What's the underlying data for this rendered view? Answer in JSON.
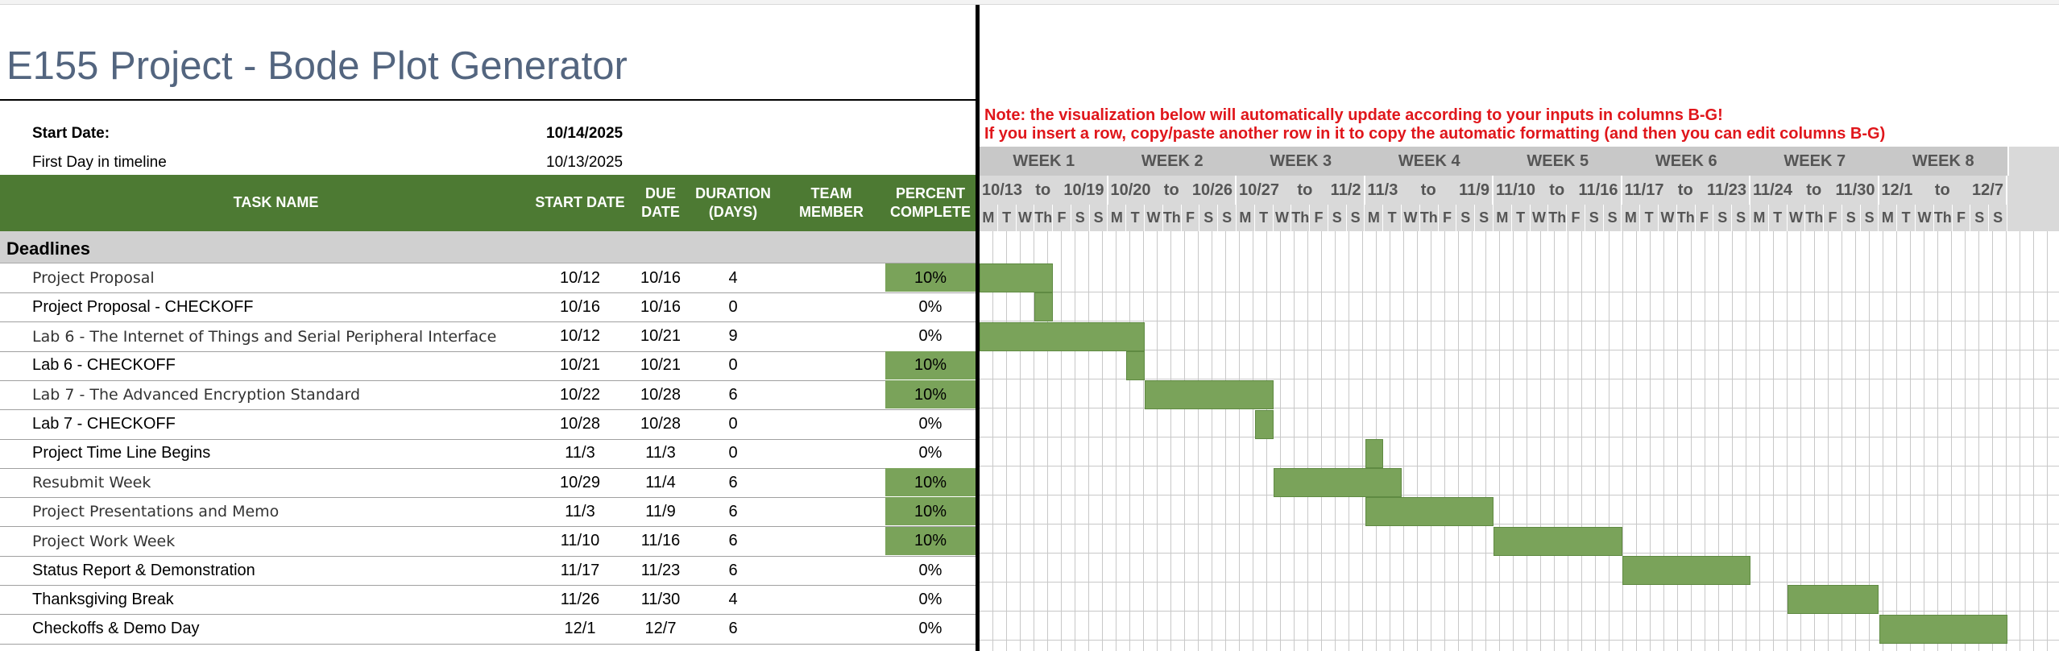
{
  "title": "E155 Project - Bode Plot Generator",
  "meta": {
    "start_label": "Start Date:",
    "start_value": "10/14/2025",
    "first_day_label": "First Day in timeline",
    "first_day_value": "10/13/2025"
  },
  "columns": {
    "task": "TASK NAME",
    "start": "START DATE",
    "due": "DUE\nDATE",
    "duration": "DURATION\n(DAYS)",
    "member": "TEAM\nMEMBER",
    "percent": "PERCENT\nCOMPLETE"
  },
  "section": "Deadlines",
  "notes": {
    "line1": "Note: the visualization below will automatically update according to your inputs in columns B-G!",
    "line2": "If you insert a row, copy/paste another row in it to copy the automatic formatting (and then you can edit columns B-G)"
  },
  "weeks": [
    {
      "label": "WEEK 1",
      "from": "10/13",
      "to": "10/19"
    },
    {
      "label": "WEEK 2",
      "from": "10/20",
      "to": "10/26"
    },
    {
      "label": "WEEK 3",
      "from": "10/27",
      "to": "11/2"
    },
    {
      "label": "WEEK 4",
      "from": "11/3",
      "to": "11/9"
    },
    {
      "label": "WEEK 5",
      "from": "11/10",
      "to": "11/16"
    },
    {
      "label": "WEEK 6",
      "from": "11/17",
      "to": "11/23"
    },
    {
      "label": "WEEK 7",
      "from": "11/24",
      "to": "11/30"
    },
    {
      "label": "WEEK 8",
      "from": "12/1",
      "to": "12/7"
    }
  ],
  "range_word": "to",
  "day_labels": [
    "M",
    "T",
    "W",
    "Th",
    "F",
    "S",
    "S"
  ],
  "colors": {
    "header_green": "#4d7a33",
    "bar_green": "#7aa35a",
    "percent_fill": "#7aa35a",
    "note_red": "#e0161b",
    "title_blue": "#53657f"
  },
  "tasks": [
    {
      "name": "Project Proposal",
      "start": "10/12",
      "due": "10/16",
      "duration": "4",
      "member": "",
      "percent": "10%",
      "filled": true,
      "lite": true
    },
    {
      "name": "Project Proposal - CHECKOFF",
      "start": "10/16",
      "due": "10/16",
      "duration": "0",
      "member": "",
      "percent": "0%",
      "filled": false,
      "lite": false
    },
    {
      "name": "Lab 6 - The Internet of Things and Serial Peripheral Interface",
      "start": "10/12",
      "due": "10/21",
      "duration": "9",
      "member": "",
      "percent": "0%",
      "filled": false,
      "lite": true
    },
    {
      "name": "Lab 6 - CHECKOFF",
      "start": "10/21",
      "due": "10/21",
      "duration": "0",
      "member": "",
      "percent": "10%",
      "filled": true,
      "lite": false
    },
    {
      "name": "Lab 7 - The Advanced Encryption Standard",
      "start": "10/22",
      "due": "10/28",
      "duration": "6",
      "member": "",
      "percent": "10%",
      "filled": true,
      "lite": true
    },
    {
      "name": "Lab 7 - CHECKOFF",
      "start": "10/28",
      "due": "10/28",
      "duration": "0",
      "member": "",
      "percent": "0%",
      "filled": false,
      "lite": false
    },
    {
      "name": "Project Time Line Begins",
      "start": "11/3",
      "due": "11/3",
      "duration": "0",
      "member": "",
      "percent": "0%",
      "filled": false,
      "lite": false
    },
    {
      "name": "Resubmit Week",
      "start": "10/29",
      "due": "11/4",
      "duration": "6",
      "member": "",
      "percent": "10%",
      "filled": true,
      "lite": true
    },
    {
      "name": "Project Presentations and Memo",
      "start": "11/3",
      "due": "11/9",
      "duration": "6",
      "member": "",
      "percent": "10%",
      "filled": true,
      "lite": true
    },
    {
      "name": "Project Work Week",
      "start": "11/10",
      "due": "11/16",
      "duration": "6",
      "member": "",
      "percent": "10%",
      "filled": true,
      "lite": true
    },
    {
      "name": "Status Report & Demonstration",
      "start": "11/17",
      "due": "11/23",
      "duration": "6",
      "member": "",
      "percent": "0%",
      "filled": false,
      "lite": false
    },
    {
      "name": "Thanksgiving Break",
      "start": "11/26",
      "due": "11/30",
      "duration": "4",
      "member": "",
      "percent": "0%",
      "filled": false,
      "lite": false
    },
    {
      "name": "Checkoffs & Demo Day",
      "start": "12/1",
      "due": "12/7",
      "duration": "6",
      "member": "",
      "percent": "0%",
      "filled": false,
      "lite": false
    }
  ]
}
